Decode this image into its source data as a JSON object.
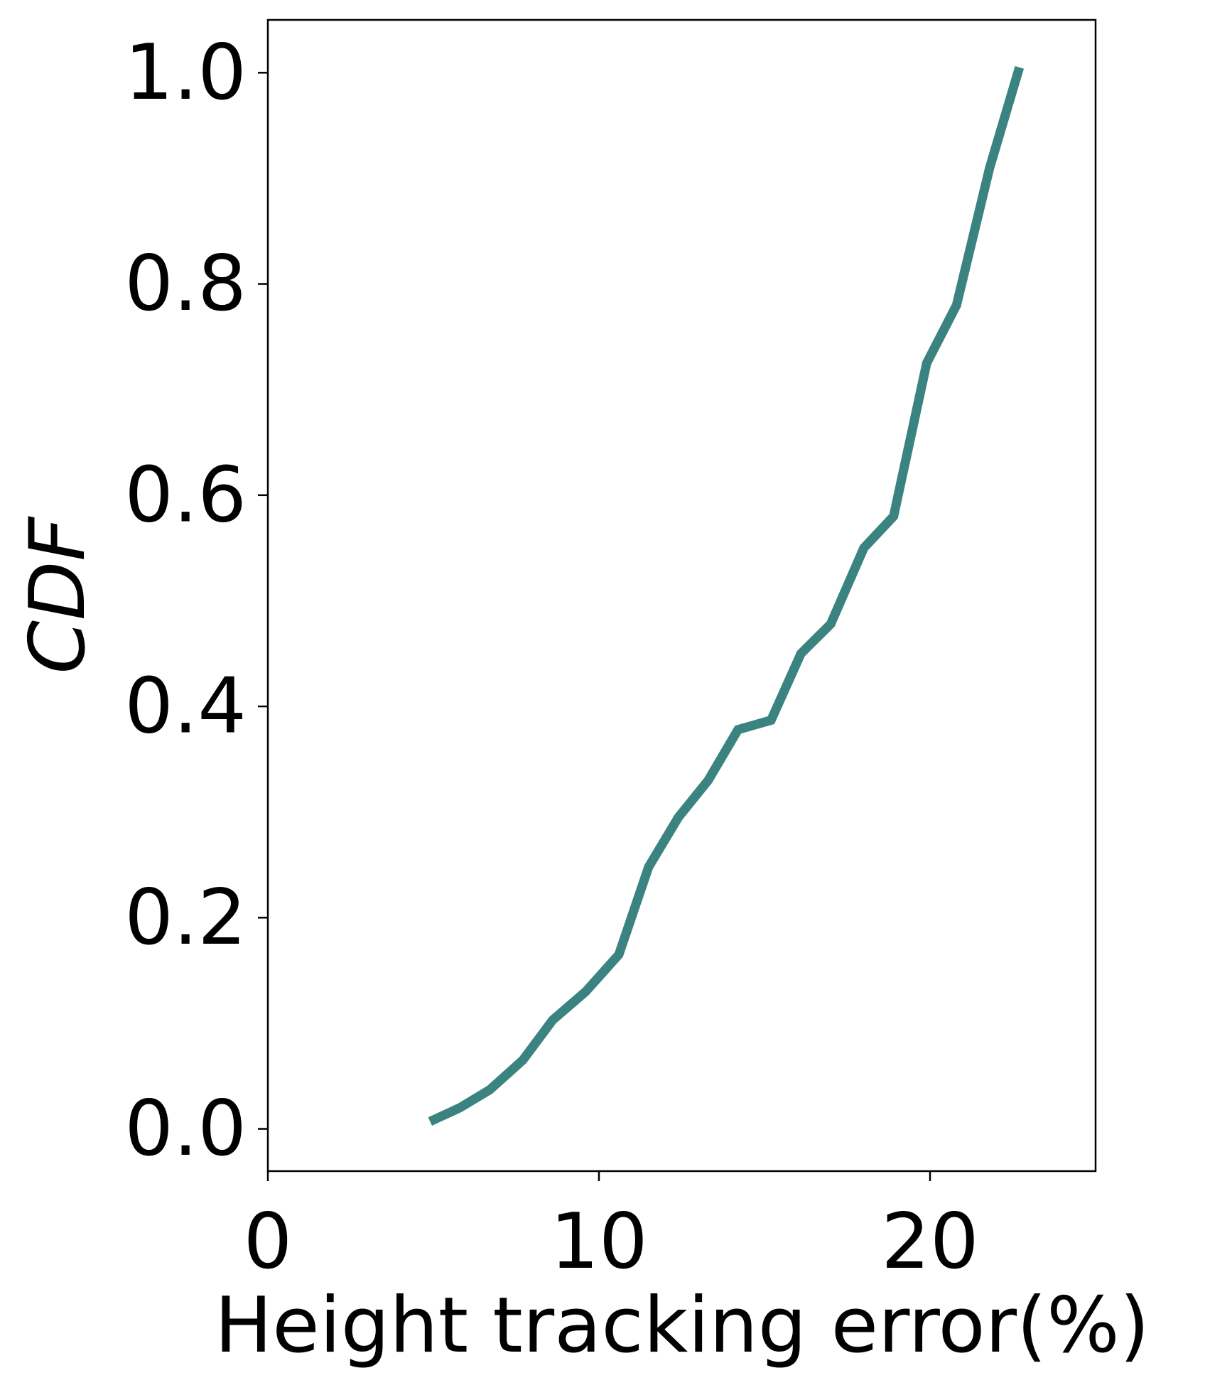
{
  "chart_data": {
    "type": "line",
    "title": "",
    "xlabel": "Height tracking error(%)",
    "ylabel": "CDF",
    "xlim": [
      0,
      25
    ],
    "ylim": [
      -0.04,
      1.05
    ],
    "xticks": [
      {
        "value": 0,
        "label": "0"
      },
      {
        "value": 10,
        "label": "10"
      },
      {
        "value": 20,
        "label": "20"
      }
    ],
    "yticks": [
      {
        "value": 0.0,
        "label": "0.0"
      },
      {
        "value": 0.2,
        "label": "0.2"
      },
      {
        "value": 0.4,
        "label": "0.4"
      },
      {
        "value": 0.6,
        "label": "0.6"
      },
      {
        "value": 0.8,
        "label": "0.8"
      },
      {
        "value": 1.0,
        "label": "1.0"
      }
    ],
    "grid": false,
    "series": [
      {
        "color": "#3a8380",
        "points": [
          {
            "x": 4.9,
            "y": 0.007
          },
          {
            "x": 5.8,
            "y": 0.02
          },
          {
            "x": 6.7,
            "y": 0.037
          },
          {
            "x": 7.7,
            "y": 0.065
          },
          {
            "x": 8.6,
            "y": 0.103
          },
          {
            "x": 9.6,
            "y": 0.13
          },
          {
            "x": 10.6,
            "y": 0.165
          },
          {
            "x": 11.5,
            "y": 0.248
          },
          {
            "x": 12.4,
            "y": 0.295
          },
          {
            "x": 13.3,
            "y": 0.33
          },
          {
            "x": 14.2,
            "y": 0.378
          },
          {
            "x": 15.2,
            "y": 0.387
          },
          {
            "x": 16.1,
            "y": 0.45
          },
          {
            "x": 17.0,
            "y": 0.478
          },
          {
            "x": 18.0,
            "y": 0.55
          },
          {
            "x": 18.9,
            "y": 0.58
          },
          {
            "x": 19.9,
            "y": 0.725
          },
          {
            "x": 20.8,
            "y": 0.78
          },
          {
            "x": 21.8,
            "y": 0.91
          },
          {
            "x": 22.7,
            "y": 1.005
          }
        ]
      }
    ]
  }
}
